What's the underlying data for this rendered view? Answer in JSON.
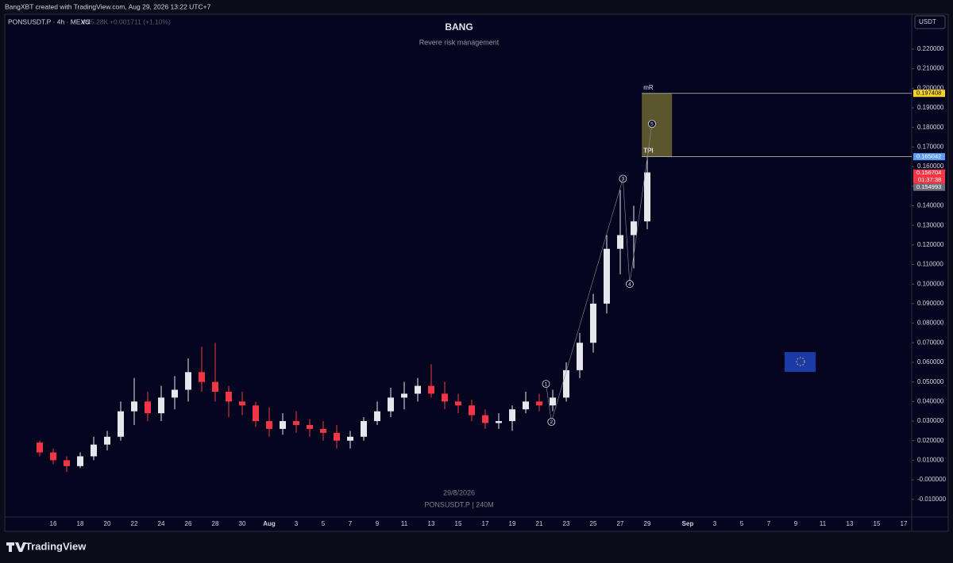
{
  "header": "BangXBT created with TradingView.com, Aug 29, 2026 13:22 UTC+7",
  "footer_logo": "TradingView",
  "chart_data": {
    "type": "candlestick",
    "title": "BANG",
    "subtitle": "Revere risk management",
    "symbol": "PONSUSDT.P · 4h · MEXC",
    "volume_label": "Vol",
    "volume_value": "5.28K",
    "change": "+0.001711 (+1.10%)",
    "watermark_date": "29/8/2026",
    "watermark_symbol": "PONSUSDT.P | 240M",
    "currency": "USDT",
    "categories": [
      null,
      "16",
      null,
      "18",
      null,
      "20",
      null,
      "22",
      null,
      "24",
      null,
      "26",
      null,
      "28",
      null,
      "30",
      null,
      "Aug",
      null,
      "3",
      null,
      "5",
      null,
      "7",
      null,
      "9",
      null,
      "11",
      null,
      "13",
      null,
      "15",
      null,
      "17",
      null,
      "19",
      null,
      "21",
      null,
      "23",
      null,
      "25",
      null,
      "27",
      null,
      "29",
      null,
      null,
      "Sep",
      null,
      "3",
      null,
      "5",
      null,
      "7",
      null,
      "9",
      null,
      "11",
      null,
      "13",
      null,
      "15",
      null,
      "17"
    ],
    "open": [
      0.019,
      0.014,
      0.01,
      0.007,
      0.012,
      0.018,
      0.022,
      0.035,
      0.04,
      0.034,
      0.042,
      0.046,
      0.055,
      0.05,
      0.045,
      0.04,
      0.038,
      0.03,
      0.026,
      0.03,
      0.028,
      0.026,
      0.024,
      0.02,
      0.022,
      0.03,
      0.035,
      0.042,
      0.044,
      0.048,
      0.044,
      0.04,
      0.038,
      0.033,
      0.029,
      0.03,
      0.036,
      0.04,
      0.038,
      0.042,
      0.056,
      0.07,
      0.09,
      0.118,
      0.125,
      0.132,
      null,
      null,
      null,
      null,
      null,
      null,
      null,
      null,
      null,
      null,
      null,
      null,
      null,
      null,
      null,
      null,
      null,
      null,
      null
    ],
    "high": [
      0.02,
      0.016,
      0.012,
      0.014,
      0.022,
      0.025,
      0.04,
      0.052,
      0.045,
      0.048,
      0.053,
      0.062,
      0.068,
      0.07,
      0.048,
      0.045,
      0.04,
      0.037,
      0.034,
      0.035,
      0.031,
      0.03,
      0.028,
      0.025,
      0.032,
      0.04,
      0.047,
      0.05,
      0.052,
      0.059,
      0.05,
      0.044,
      0.041,
      0.036,
      0.034,
      0.038,
      0.045,
      0.044,
      0.046,
      0.06,
      0.075,
      0.095,
      0.125,
      0.148,
      0.14,
      0.165,
      null,
      null,
      null,
      null,
      null,
      null,
      null,
      null,
      null,
      null,
      null,
      null,
      null,
      null,
      null,
      null,
      null,
      null,
      null
    ],
    "low": [
      0.012,
      0.008,
      0.004,
      0.006,
      0.01,
      0.015,
      0.02,
      0.028,
      0.03,
      0.03,
      0.036,
      0.04,
      0.045,
      0.04,
      0.032,
      0.033,
      0.027,
      0.022,
      0.023,
      0.024,
      0.022,
      0.02,
      0.016,
      0.016,
      0.02,
      0.028,
      0.032,
      0.036,
      0.04,
      0.042,
      0.036,
      0.034,
      0.03,
      0.026,
      0.026,
      0.025,
      0.034,
      0.035,
      0.035,
      0.04,
      0.052,
      0.065,
      0.085,
      0.105,
      0.108,
      0.128,
      null,
      null,
      null,
      null,
      null,
      null,
      null,
      null,
      null,
      null,
      null,
      null,
      null,
      null,
      null,
      null,
      null,
      null,
      null
    ],
    "close": [
      0.014,
      0.01,
      0.007,
      0.012,
      0.018,
      0.022,
      0.035,
      0.04,
      0.034,
      0.042,
      0.046,
      0.055,
      0.05,
      0.045,
      0.04,
      0.038,
      0.03,
      0.026,
      0.03,
      0.028,
      0.026,
      0.024,
      0.02,
      0.022,
      0.03,
      0.035,
      0.042,
      0.044,
      0.048,
      0.044,
      0.04,
      0.038,
      0.033,
      0.029,
      0.03,
      0.036,
      0.04,
      0.038,
      0.042,
      0.056,
      0.07,
      0.09,
      0.118,
      0.125,
      0.132,
      0.157,
      null,
      null,
      null,
      null,
      null,
      null,
      null,
      null,
      null,
      null,
      null,
      null,
      null,
      null,
      null,
      null,
      null,
      null,
      null
    ],
    "up_color": "#e6e6ec",
    "down_color": "#f23645",
    "ylim": [
      -0.019,
      0.2378
    ],
    "yticks": [
      {
        "value": -0.01,
        "label": "-0.010000"
      },
      {
        "value": 0,
        "label": "-0.000000"
      },
      {
        "value": 0.01,
        "label": "0.010000"
      },
      {
        "value": 0.02,
        "label": "0.020000"
      },
      {
        "value": 0.03,
        "label": "0.030000"
      },
      {
        "value": 0.04,
        "label": "0.040000"
      },
      {
        "value": 0.05,
        "label": "0.050000"
      },
      {
        "value": 0.06,
        "label": "0.060000"
      },
      {
        "value": 0.07,
        "label": "0.070000"
      },
      {
        "value": 0.08,
        "label": "0.080000"
      },
      {
        "value": 0.09,
        "label": "0.090000"
      },
      {
        "value": 0.1,
        "label": "0.100000"
      },
      {
        "value": 0.11,
        "label": "0.110000"
      },
      {
        "value": 0.12,
        "label": "0.120000"
      },
      {
        "value": 0.13,
        "label": "0.130000"
      },
      {
        "value": 0.14,
        "label": "0.140000"
      },
      {
        "value": 0.15,
        "label": "0.150000"
      },
      {
        "value": 0.16,
        "label": "0.160000"
      },
      {
        "value": 0.17,
        "label": "0.170000"
      },
      {
        "value": 0.18,
        "label": "0.180000"
      },
      {
        "value": 0.19,
        "label": "0.190000"
      },
      {
        "value": 0.2,
        "label": "0.200000"
      },
      {
        "value": 0.21,
        "label": "0.210000"
      },
      {
        "value": 0.22,
        "label": "0.220000"
      }
    ],
    "zone": {
      "top": 0.197408,
      "bottom": 0.165042,
      "top_label": "mR",
      "bottom_label": "TPI",
      "color": "#6b6530"
    },
    "price_labels": [
      {
        "value": 0.197408,
        "color": "#f5d22b"
      },
      {
        "value": 0.165042,
        "color": "#5b9cf6"
      },
      {
        "value": 0.156704,
        "color": "#f23645",
        "countdown": "01:37:38"
      },
      {
        "value": 0.154993,
        "color": "#6a6d78"
      }
    ],
    "annotations": [
      {
        "text": "1",
        "x": 37.5,
        "y": 0.049
      },
      {
        "text": "2",
        "x": 37.9,
        "y": 0.0296
      },
      {
        "text": "3",
        "x": 43.2,
        "y": 0.1538
      },
      {
        "text": "4",
        "x": 43.7,
        "y": 0.1
      },
      {
        "text": "5",
        "x": 45.35,
        "y": 0.1818
      }
    ]
  }
}
